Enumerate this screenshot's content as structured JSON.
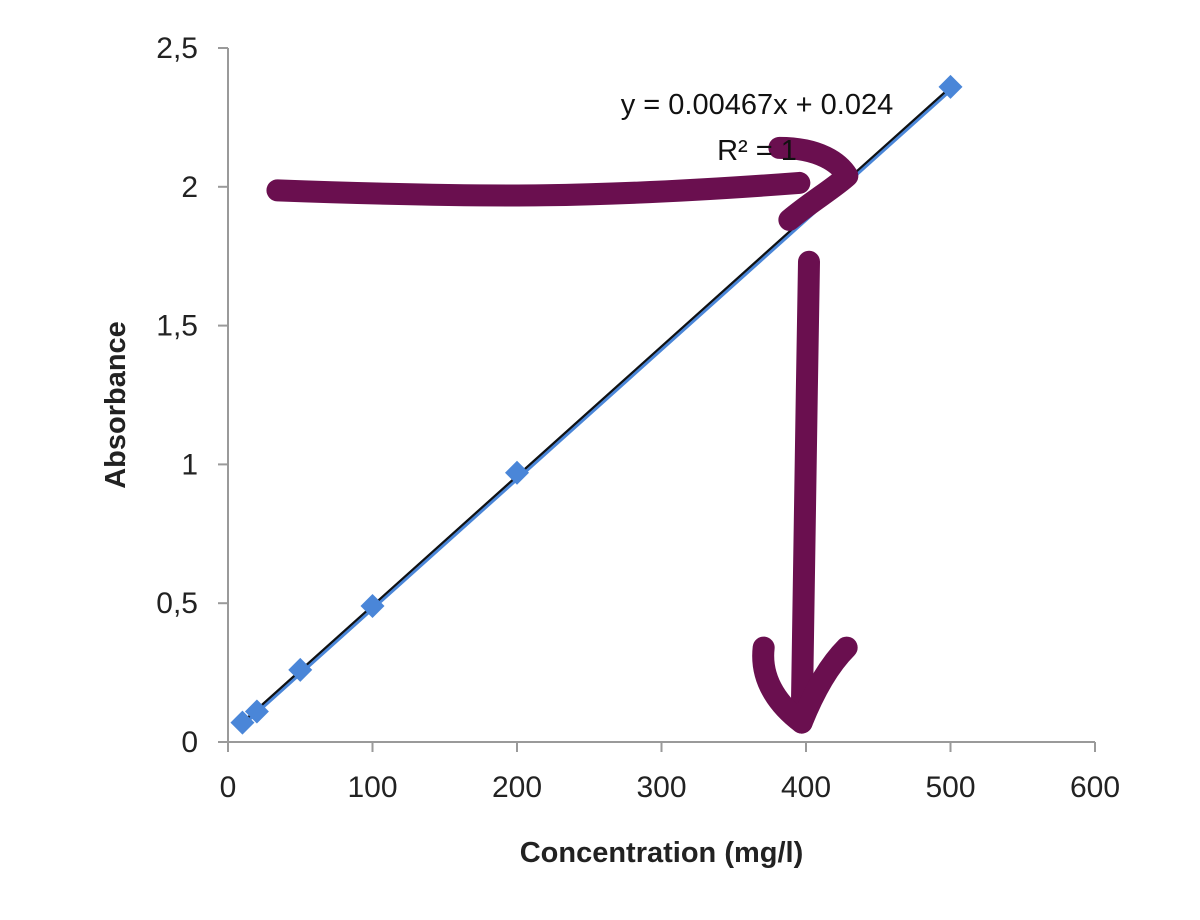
{
  "chart_data": {
    "type": "scatter",
    "title": "",
    "xlabel": "Concentration (mg/l)",
    "ylabel": "Absorbance",
    "xlim": [
      0,
      600
    ],
    "ylim": [
      0,
      2.5
    ],
    "x_ticks": [
      0,
      100,
      200,
      300,
      400,
      500,
      600
    ],
    "y_ticks": [
      0,
      0.5,
      1,
      1.5,
      2,
      2.5
    ],
    "x_tick_labels": [
      "0",
      "100",
      "200",
      "300",
      "400",
      "500",
      "600"
    ],
    "y_tick_labels": [
      "0",
      "0,5",
      "1",
      "1,5",
      "2",
      "2,5"
    ],
    "grid": false,
    "legend": "none",
    "series": [
      {
        "name": "Absorbance",
        "marker": "diamond",
        "color": "#4a86d8",
        "x": [
          10,
          20,
          50,
          100,
          200,
          500
        ],
        "y": [
          0.07,
          0.11,
          0.26,
          0.49,
          0.97,
          2.36
        ]
      }
    ],
    "trendline": {
      "type": "linear",
      "slope": 0.00467,
      "intercept": 0.024,
      "x_range": [
        10,
        500
      ],
      "equation_label": "y = 0.00467x + 0.024",
      "r2_label": "R² = 1",
      "color": "#111111",
      "underlay_color": "#4a86d8"
    },
    "annotations": [
      {
        "kind": "hand-drawn-arrow",
        "description_color": "#6a0f4f",
        "from": [
          10,
          1.98
        ],
        "to": [
          430,
          2.05
        ],
        "head": "right"
      },
      {
        "kind": "hand-drawn-arrow",
        "description_color": "#6a0f4f",
        "from": [
          400,
          1.73
        ],
        "to": [
          397,
          0.07
        ],
        "head": "down"
      }
    ]
  }
}
